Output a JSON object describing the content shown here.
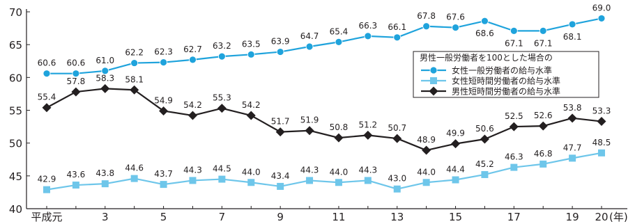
{
  "chart_data": {
    "type": "line",
    "title": "",
    "xlabel": "",
    "ylabel": "",
    "x_unit_label": "(年)",
    "ylim": [
      40,
      70
    ],
    "y_ticks": [
      40,
      45,
      50,
      55,
      60,
      65,
      70
    ],
    "grid": false,
    "legend_position": "right",
    "legend_title": "男性一般労働者を100とした場合の",
    "x": [
      1,
      2,
      3,
      4,
      5,
      6,
      7,
      8,
      9,
      10,
      11,
      12,
      13,
      14,
      15,
      16,
      17,
      18,
      19,
      20
    ],
    "x_tick_labels": [
      {
        "x": 1,
        "label": "平成元"
      },
      {
        "x": 3,
        "label": "3"
      },
      {
        "x": 5,
        "label": "5"
      },
      {
        "x": 7,
        "label": "7"
      },
      {
        "x": 9,
        "label": "9"
      },
      {
        "x": 11,
        "label": "11"
      },
      {
        "x": 13,
        "label": "13"
      },
      {
        "x": 15,
        "label": "15"
      },
      {
        "x": 17,
        "label": "17"
      },
      {
        "x": 19,
        "label": "19"
      },
      {
        "x": 20,
        "label": "20"
      }
    ],
    "series": [
      {
        "name": "女性一般労働者の給与水準",
        "color": "#1fa3dc",
        "marker": "circle",
        "values": [
          60.6,
          60.6,
          61.0,
          62.2,
          62.3,
          62.7,
          63.2,
          63.5,
          63.9,
          64.7,
          65.4,
          66.3,
          66.1,
          67.8,
          67.6,
          68.6,
          67.1,
          67.1,
          68.1,
          69.0
        ],
        "labels": [
          "60.6",
          "60.6",
          "61.0",
          "62.2",
          "62.3",
          "62.7",
          "63.2",
          "63.5",
          "63.9",
          "64.7",
          "65.4",
          "66.3",
          "66.1",
          "67.8",
          "67.6",
          "68.6",
          "67.1",
          "67.1",
          "68.1",
          "69.0"
        ]
      },
      {
        "name": "女性短時間労働者の給与水準",
        "color": "#6ec6ea",
        "marker": "square",
        "values": [
          42.9,
          43.6,
          43.8,
          44.6,
          43.7,
          44.3,
          44.5,
          44.0,
          43.4,
          44.3,
          44.0,
          44.3,
          43.0,
          44.0,
          44.4,
          45.2,
          46.3,
          46.8,
          47.7,
          48.5
        ],
        "labels": [
          "42.9",
          "43.6",
          "43.8",
          "44.6",
          "43.7",
          "44.3",
          "44.5",
          "44.0",
          "43.4",
          "44.3",
          "44.0",
          "44.3",
          "43.0",
          "44.0",
          "44.4",
          "45.2",
          "46.3",
          "46.8",
          "47.7",
          "48.5"
        ]
      },
      {
        "name": "男性短時間労働者の給与水準",
        "color": "#231f20",
        "marker": "diamond",
        "values": [
          55.4,
          57.8,
          58.3,
          58.1,
          54.9,
          54.2,
          55.3,
          54.2,
          51.7,
          51.9,
          50.8,
          51.2,
          50.7,
          48.9,
          49.9,
          50.6,
          52.5,
          52.6,
          53.8,
          53.3
        ],
        "labels": [
          "55.4",
          "57.8",
          "58.3",
          "58.1",
          "54.9",
          "54.2",
          "55.3",
          "54.2",
          "51.7",
          "51.9",
          "50.8",
          "51.2",
          "50.7",
          "48.9",
          "49.9",
          "50.6",
          "52.5",
          "52.6",
          "53.8",
          "53.3"
        ]
      }
    ]
  }
}
